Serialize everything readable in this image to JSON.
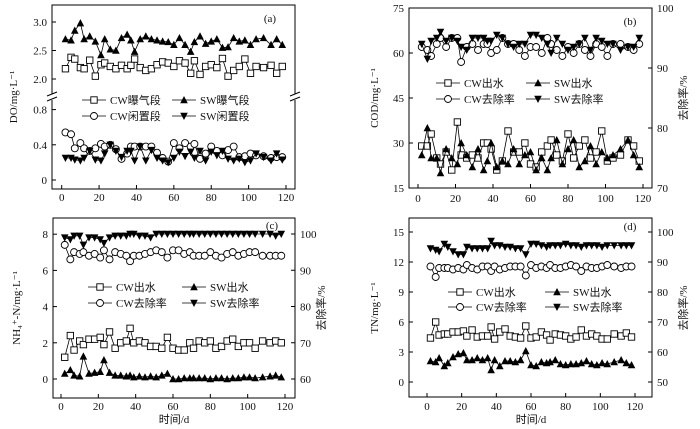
{
  "chart_data": [
    {
      "type": "line",
      "panel_label": "(a)",
      "ylabel": "DO/mg·L⁻¹",
      "xlabel": "",
      "xlim": [
        0,
        120
      ],
      "x_ticks": [
        "0",
        "20",
        "40",
        "60",
        "80",
        "100",
        "120"
      ],
      "y_ticks": [
        "3.0",
        "2.5",
        "2.0",
        "0.8",
        "0.4",
        "0"
      ],
      "y_axis_break": [
        0.8,
        2.0
      ],
      "x": [
        2,
        5,
        7,
        10,
        12,
        15,
        18,
        21,
        23,
        26,
        29,
        32,
        35,
        37,
        39,
        42,
        45,
        48,
        51,
        54,
        57,
        60,
        63,
        66,
        69,
        71,
        74,
        77,
        80,
        83,
        86,
        89,
        92,
        95,
        98,
        101,
        104,
        108,
        112,
        115,
        118
      ],
      "series": [
        {
          "name": "CW曝气段",
          "marker": "square-open",
          "axis": "left",
          "values": [
            2.18,
            2.38,
            2.35,
            2.2,
            2.18,
            2.33,
            2.05,
            2.25,
            2.28,
            2.22,
            2.18,
            2.24,
            2.18,
            2.24,
            2.35,
            2.2,
            2.15,
            2.18,
            2.25,
            2.3,
            2.28,
            2.22,
            2.32,
            2.28,
            2.1,
            2.32,
            2.08,
            2.22,
            2.25,
            2.2,
            2.36,
            2.05,
            2.15,
            2.22,
            2.35,
            2.1,
            2.22,
            2.2,
            2.24,
            2.1,
            2.22
          ]
        },
        {
          "name": "SW曝气段",
          "marker": "triangle-up-filled",
          "axis": "left",
          "values": [
            2.7,
            2.68,
            2.85,
            2.98,
            2.7,
            2.75,
            2.66,
            2.42,
            2.7,
            2.52,
            2.5,
            2.72,
            2.78,
            2.68,
            2.48,
            2.7,
            2.75,
            2.7,
            2.68,
            2.66,
            2.65,
            2.6,
            2.72,
            2.6,
            2.48,
            2.65,
            2.75,
            2.62,
            2.66,
            2.7,
            2.55,
            2.56,
            2.72,
            2.66,
            2.68,
            2.6,
            2.7,
            2.72,
            2.6,
            2.7,
            2.6
          ]
        },
        {
          "name": "CW闲置段",
          "marker": "circle-open",
          "axis": "left",
          "values": [
            0.54,
            0.52,
            0.36,
            0.42,
            0.36,
            0.33,
            0.36,
            0.41,
            0.38,
            0.4,
            0.35,
            0.24,
            0.3,
            0.38,
            0.38,
            0.38,
            0.38,
            0.38,
            0.31,
            0.25,
            0.21,
            0.42,
            0.36,
            0.42,
            0.38,
            0.41,
            0.24,
            0.3,
            0.38,
            0.33,
            0.28,
            0.34,
            0.38,
            0.26,
            0.27,
            0.3,
            0.28,
            0.27,
            0.25,
            0.26,
            0.26
          ]
        },
        {
          "name": "SW闲置段",
          "marker": "triangle-down-filled",
          "axis": "left",
          "values": [
            0.25,
            0.25,
            0.23,
            0.22,
            0.25,
            0.33,
            0.23,
            0.22,
            0.3,
            0.4,
            0.33,
            0.26,
            0.33,
            0.33,
            0.22,
            0.38,
            0.22,
            0.34,
            0.25,
            0.22,
            0.2,
            0.25,
            0.32,
            0.27,
            0.32,
            0.25,
            0.33,
            0.22,
            0.32,
            0.28,
            0.33,
            0.24,
            0.22,
            0.24,
            0.2,
            0.22,
            0.3,
            0.26,
            0.22,
            0.3,
            0.23
          ]
        }
      ]
    },
    {
      "type": "line",
      "panel_label": "(b)",
      "ylabel": "COD/mg·L⁻¹",
      "ylabel_right": "去除率/%",
      "xlabel": "",
      "xlim": [
        0,
        120
      ],
      "ylim": [
        15,
        75
      ],
      "ylim_right": [
        70,
        100
      ],
      "x_ticks": [
        "0",
        "20",
        "40",
        "60",
        "80",
        "100",
        "120"
      ],
      "y_ticks": [
        "75",
        "60",
        "45",
        "30",
        "15"
      ],
      "y_ticks_right": [
        "100",
        "90",
        "80",
        "70"
      ],
      "x": [
        2,
        5,
        7,
        10,
        12,
        15,
        18,
        21,
        23,
        26,
        29,
        32,
        35,
        37,
        39,
        42,
        45,
        48,
        51,
        54,
        57,
        60,
        63,
        66,
        69,
        71,
        74,
        77,
        80,
        83,
        86,
        89,
        92,
        95,
        98,
        101,
        104,
        108,
        112,
        115,
        118
      ],
      "series": [
        {
          "name": "CW出水",
          "marker": "square-open",
          "axis": "left",
          "values": [
            29,
            29,
            33,
            25,
            23,
            27,
            21,
            37,
            26,
            25,
            26,
            25,
            30,
            30,
            28,
            21,
            24,
            34,
            27,
            27,
            30,
            23,
            22,
            27,
            29,
            31,
            26,
            24,
            33,
            25,
            29,
            31,
            25,
            27,
            34,
            24,
            25,
            26,
            31,
            29,
            24
          ]
        },
        {
          "name": "SW出水",
          "marker": "triangle-up-filled",
          "axis": "left",
          "values": [
            26,
            35,
            25,
            25,
            20,
            28,
            25,
            23,
            30,
            26,
            22,
            28,
            21,
            24,
            30,
            22,
            24,
            23,
            28,
            23,
            26,
            27,
            21,
            25,
            21,
            25,
            31,
            23,
            28,
            31,
            22,
            24,
            29,
            23,
            27,
            25,
            26,
            28,
            31,
            26,
            22
          ]
        },
        {
          "name": "CW去除率",
          "marker": "circle-open",
          "axis": "right",
          "values": [
            93.5,
            93,
            92,
            94,
            95,
            93.5,
            95,
            95,
            91,
            93.5,
            94,
            93,
            94,
            94,
            92.5,
            93,
            95,
            94,
            94,
            93,
            92,
            93.5,
            93.5,
            92.5,
            95,
            94,
            93,
            92,
            93.5,
            92.5,
            94,
            93,
            92,
            94,
            93.5,
            92,
            94,
            94,
            93.5,
            93,
            94
          ]
        },
        {
          "name": "SW去除率",
          "marker": "triangle-down-filled",
          "axis": "right",
          "values": [
            94,
            91.5,
            94.5,
            95,
            96,
            94.5,
            95,
            94.5,
            93.5,
            93,
            95,
            95,
            95,
            94.5,
            94.5,
            95.5,
            95,
            94,
            93.5,
            94,
            94,
            95.5,
            95.5,
            95,
            94,
            92.5,
            95,
            94,
            93,
            93.5,
            94,
            95,
            93,
            95,
            94.5,
            94,
            94,
            93,
            93.5,
            93.5,
            95
          ]
        }
      ]
    },
    {
      "type": "line",
      "panel_label": "(c)",
      "ylabel": "NH₄⁺-N/mg·L⁻¹",
      "ylabel_right": "去除率/%",
      "xlabel": "时间/d",
      "xlim": [
        0,
        120
      ],
      "ylim": [
        -1,
        8.9
      ],
      "ylim_right": [
        55,
        104.5
      ],
      "x_ticks": [
        "0",
        "20",
        "40",
        "60",
        "80",
        "100",
        "120"
      ],
      "y_ticks": [
        "8",
        "6",
        "4",
        "2",
        "0"
      ],
      "y_ticks_right": [
        "100",
        "90",
        "80",
        "70",
        "60"
      ],
      "x": [
        2,
        5,
        7,
        10,
        12,
        15,
        18,
        21,
        23,
        26,
        29,
        32,
        35,
        37,
        39,
        42,
        45,
        48,
        51,
        54,
        57,
        60,
        63,
        66,
        69,
        71,
        74,
        77,
        80,
        83,
        86,
        89,
        92,
        95,
        98,
        101,
        104,
        108,
        112,
        115,
        118
      ],
      "series": [
        {
          "name": "CW出水",
          "marker": "square-open",
          "axis": "left",
          "values": [
            1.2,
            2.4,
            1.6,
            2.1,
            1.9,
            2.2,
            2.2,
            2.3,
            1.9,
            2.6,
            1.7,
            2.0,
            2.1,
            2.8,
            2.0,
            2.1,
            2.0,
            1.8,
            1.8,
            1.7,
            2.3,
            1.7,
            1.6,
            1.6,
            2.0,
            1.7,
            2.1,
            2.0,
            2.1,
            1.7,
            1.8,
            2.1,
            2.2,
            1.8,
            2.0,
            2.0,
            1.7,
            2.1,
            2.0,
            2.1,
            2.0
          ]
        },
        {
          "name": "SW出水",
          "marker": "triangle-up-filled",
          "axis": "left",
          "values": [
            0.3,
            0.5,
            0.2,
            0.15,
            1.25,
            0.3,
            0.35,
            0.4,
            1.05,
            0.35,
            0.2,
            0.2,
            0.15,
            0.2,
            0.1,
            0.15,
            0.1,
            0.15,
            0.1,
            0.2,
            0.3,
            0.0,
            0.0,
            0.05,
            0.05,
            0.05,
            0.05,
            0.05,
            0.0,
            0.05,
            0.05,
            0.0,
            0.05,
            0.05,
            0.1,
            0.1,
            0.05,
            0.1,
            0.15,
            0.2,
            0.1
          ]
        },
        {
          "name": "CW去除率",
          "marker": "circle-open",
          "axis": "right",
          "values": [
            97,
            93,
            95,
            94.5,
            95,
            94,
            94.5,
            93.5,
            95.5,
            93,
            95,
            94.5,
            94,
            92.5,
            94,
            94,
            94.5,
            95,
            95.5,
            95,
            93.5,
            95.5,
            95.5,
            94.5,
            95,
            94,
            94,
            94,
            95,
            94,
            93.5,
            94.5,
            95,
            94,
            94.5,
            95,
            95,
            94,
            94,
            94,
            94
          ]
        },
        {
          "name": "SW去除率",
          "marker": "triangle-down-filled",
          "axis": "right",
          "values": [
            99,
            98.5,
            99.5,
            99.5,
            97,
            99,
            99,
            98.5,
            97.5,
            99,
            99.5,
            99.5,
            99.5,
            100,
            100,
            99.5,
            99.5,
            99,
            100,
            100,
            100,
            100,
            100,
            100,
            100,
            100,
            100,
            100,
            100,
            100,
            100,
            100,
            100,
            100,
            100,
            100,
            100,
            100,
            100,
            99.5,
            100
          ]
        }
      ]
    },
    {
      "type": "line",
      "panel_label": "(d)",
      "ylabel": "TN/mg·L⁻¹",
      "ylabel_right": "去除率/%",
      "xlabel": "时间/d",
      "xlim": [
        0,
        120
      ],
      "ylim": [
        -1.5,
        16.4
      ],
      "ylim_right": [
        45,
        104.7
      ],
      "x_ticks": [
        "0",
        "20",
        "40",
        "60",
        "80",
        "100",
        "120"
      ],
      "y_ticks": [
        "15",
        "12",
        "9",
        "6",
        "3",
        "0"
      ],
      "y_ticks_right": [
        "100",
        "90",
        "80",
        "70",
        "60",
        "50"
      ],
      "x": [
        2,
        5,
        7,
        10,
        12,
        15,
        18,
        21,
        23,
        26,
        29,
        32,
        35,
        37,
        39,
        42,
        45,
        48,
        51,
        54,
        57,
        60,
        63,
        66,
        69,
        71,
        74,
        77,
        80,
        83,
        86,
        89,
        92,
        95,
        98,
        101,
        104,
        108,
        112,
        115,
        118
      ],
      "series": [
        {
          "name": "CW出水",
          "marker": "square-open",
          "axis": "left",
          "values": [
            4.4,
            6.0,
            4.7,
            4.8,
            4.8,
            5.0,
            5.0,
            5.1,
            4.6,
            5.2,
            4.5,
            4.6,
            4.6,
            5.5,
            4.3,
            5.0,
            5.3,
            4.6,
            4.5,
            4.4,
            5.6,
            4.4,
            4.5,
            5.0,
            4.7,
            4.2,
            4.8,
            4.7,
            4.6,
            4.3,
            4.5,
            5.2,
            4.6,
            4.8,
            4.6,
            4.3,
            4.3,
            4.8,
            4.6,
            4.9,
            4.5
          ]
        },
        {
          "name": "SW出水",
          "marker": "triangle-up-filled",
          "axis": "left",
          "values": [
            2.1,
            2.0,
            2.4,
            1.6,
            1.9,
            2.5,
            2.8,
            2.9,
            2.2,
            2.2,
            2.4,
            2.2,
            2.4,
            1.2,
            2.2,
            1.6,
            2.1,
            2.1,
            2.0,
            2.2,
            3.1,
            1.7,
            1.6,
            2.0,
            1.9,
            2.0,
            2.2,
            1.8,
            1.7,
            1.8,
            1.8,
            1.9,
            2.1,
            1.8,
            1.7,
            1.9,
            1.8,
            2.0,
            2.2,
            1.9,
            1.7
          ]
        },
        {
          "name": "CW去除率",
          "marker": "circle-open",
          "axis": "right",
          "values": [
            88.5,
            85,
            88,
            88,
            88,
            87.5,
            88,
            87.5,
            89,
            88,
            87.5,
            88.5,
            88.5,
            87,
            88.5,
            87.5,
            88,
            88.5,
            88.5,
            88.5,
            85.5,
            89,
            88,
            88.5,
            88,
            89,
            88,
            88,
            88.5,
            89,
            88.5,
            87,
            88.5,
            88,
            88,
            88.5,
            89,
            88.5,
            88,
            88.5,
            88.5
          ]
        },
        {
          "name": "SW去除率",
          "marker": "triangle-down-filled",
          "axis": "right",
          "values": [
            94.5,
            94,
            93.5,
            96,
            95,
            93.5,
            92.5,
            92.5,
            95,
            94.5,
            94.5,
            94.5,
            94.5,
            97,
            95.5,
            95.5,
            95,
            95,
            94.5,
            94.5,
            92.5,
            96,
            96,
            95.5,
            95,
            95.5,
            95.5,
            95.5,
            96,
            95.5,
            95.5,
            95,
            95.5,
            95.5,
            95.5,
            95,
            95.5,
            95.5,
            95.5,
            95.5,
            95.5
          ]
        }
      ]
    }
  ],
  "colors": {
    "ink": "#000000",
    "background": "#ffffff"
  }
}
